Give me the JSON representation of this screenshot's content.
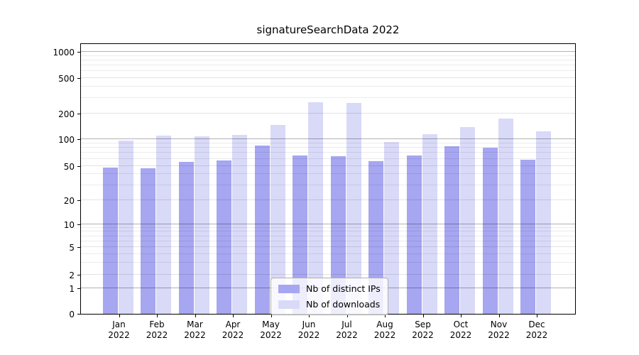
{
  "title": "signatureSearchData 2022",
  "chart_data": {
    "type": "bar",
    "title": "signatureSearchData 2022",
    "categories": [
      "Jan 2022",
      "Feb 2022",
      "Mar 2022",
      "Apr 2022",
      "May 2022",
      "Jun 2022",
      "Jul 2022",
      "Aug 2022",
      "Sep 2022",
      "Oct 2022",
      "Nov 2022",
      "Dec 2022"
    ],
    "month_labels": [
      "Jan",
      "Feb",
      "Mar",
      "Apr",
      "May",
      "Jun",
      "Jul",
      "Aug",
      "Sep",
      "Oct",
      "Nov",
      "Dec"
    ],
    "year_label": "2022",
    "series": [
      {
        "name": "Nb of distinct IPs",
        "color": "#a6a6f1",
        "values": [
          48,
          47,
          55,
          57,
          84,
          65,
          64,
          56,
          65,
          83,
          80,
          59
        ]
      },
      {
        "name": "Nb of downloads",
        "color": "#d9d9f8",
        "values": [
          97,
          110,
          107,
          113,
          147,
          266,
          260,
          93,
          114,
          138,
          173,
          123
        ]
      }
    ],
    "yscale": "symlog",
    "y_ticks": [
      0,
      1,
      2,
      5,
      10,
      20,
      50,
      100,
      200,
      500,
      1000
    ],
    "ylim": [
      0,
      1000
    ],
    "xlabel": "",
    "ylabel": "",
    "grid": true,
    "legend_position": "lower center",
    "axis_color": "#000000",
    "major_grid_values": [
      1,
      10,
      100,
      1000
    ],
    "labeled_minor_grid_values": [
      2,
      5,
      20,
      50,
      200,
      500
    ]
  }
}
